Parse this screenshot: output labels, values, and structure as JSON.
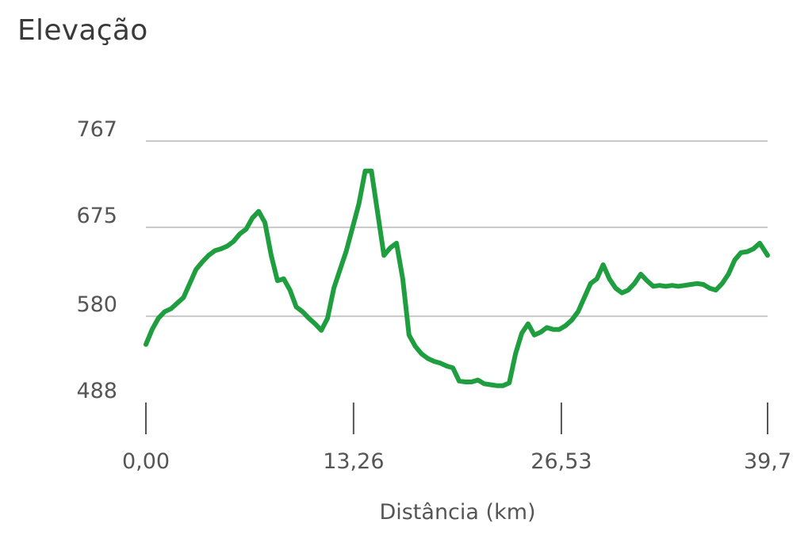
{
  "chart_data": {
    "type": "line",
    "title": "Elevação",
    "xlabel": "Distância (km)",
    "ylabel": "",
    "x_tick_labels": [
      "0,00",
      "13,26",
      "26,53",
      "39,7"
    ],
    "x_ticks": [
      0,
      13.26,
      26.53,
      39.7
    ],
    "y_tick_labels": [
      "767",
      "675",
      "580",
      "488"
    ],
    "y_ticks": [
      767,
      675,
      580,
      488
    ],
    "xlim": [
      0,
      39.7
    ],
    "ylim": [
      488,
      767
    ],
    "grid": true,
    "line_color": "#1e9e3e",
    "series": [
      {
        "x": [
          0.0,
          0.4,
          0.8,
          1.2,
          1.6,
          2.0,
          2.4,
          2.8,
          3.2,
          3.6,
          4.0,
          4.4,
          4.8,
          5.2,
          5.6,
          6.0,
          6.4,
          6.8,
          7.2,
          7.6,
          8.0,
          8.4,
          8.8,
          9.2,
          9.6,
          10.0,
          10.4,
          10.8,
          11.2,
          11.6,
          12.0,
          12.4,
          12.8,
          13.2,
          13.6,
          14.0,
          14.4,
          14.8,
          15.2,
          15.6,
          16.0,
          16.4,
          16.8,
          17.2,
          17.6,
          18.0,
          18.4,
          18.8,
          19.2,
          19.6,
          20.0,
          20.4,
          20.8,
          21.2,
          21.6,
          22.0,
          22.4,
          22.8,
          23.2,
          23.6,
          24.0,
          24.4,
          24.8,
          25.2,
          25.6,
          26.0,
          26.4,
          26.8,
          27.2,
          27.6,
          28.0,
          28.4,
          28.8,
          29.2,
          29.6,
          30.0,
          30.4,
          30.8,
          31.2,
          31.6,
          32.0,
          32.4,
          32.8,
          33.2,
          33.6,
          34.0,
          34.4,
          34.8,
          35.2,
          35.6,
          36.0,
          36.4,
          36.8,
          37.2,
          37.6,
          38.0,
          38.4,
          38.8,
          39.2,
          39.7
        ],
        "y": [
          550,
          566,
          578,
          585,
          588,
          594,
          600,
          615,
          630,
          638,
          645,
          650,
          652,
          655,
          660,
          668,
          673,
          685,
          692,
          680,
          645,
          618,
          620,
          608,
          590,
          585,
          578,
          572,
          565,
          578,
          610,
          630,
          650,
          675,
          700,
          735,
          735,
          690,
          645,
          653,
          658,
          620,
          560,
          548,
          540,
          535,
          532,
          530,
          527,
          525,
          511,
          510,
          510,
          512,
          508,
          507,
          506,
          506,
          509,
          540,
          562,
          572,
          560,
          563,
          568,
          566,
          566,
          570,
          576,
          585,
          600,
          615,
          620,
          635,
          620,
          610,
          605,
          608,
          615,
          625,
          618,
          612,
          613,
          612,
          613,
          612,
          613,
          614,
          615,
          614,
          610,
          608,
          615,
          625,
          640,
          648,
          649,
          652,
          658,
          645
        ]
      }
    ]
  }
}
